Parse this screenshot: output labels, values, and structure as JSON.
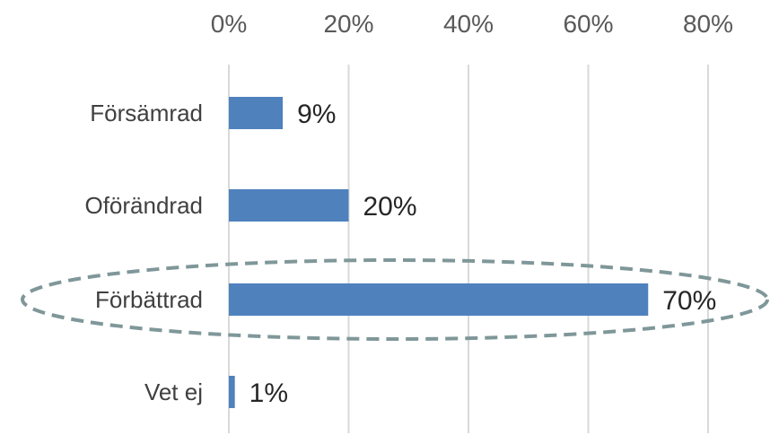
{
  "chart_data": {
    "type": "bar",
    "orientation": "horizontal",
    "categories": [
      "Försämrad",
      "Oförändrad",
      "Förbättrad",
      "Vet ej"
    ],
    "values": [
      9,
      20,
      70,
      1
    ],
    "data_labels": [
      "9%",
      "20%",
      "70%",
      "1%"
    ],
    "xlim": [
      0,
      80
    ],
    "x_ticks": [
      0,
      20,
      40,
      60,
      80
    ],
    "x_tick_labels": [
      "0%",
      "20%",
      "40%",
      "60%",
      "80%"
    ],
    "x_axis_position": "top",
    "grid": true,
    "title": "",
    "xlabel": "",
    "ylabel": "",
    "highlighted_category": "Förbättrad",
    "colors": {
      "bar": "#4f81bd",
      "grid": "#d9d9d9",
      "highlight_ellipse": "#7f9799"
    }
  }
}
